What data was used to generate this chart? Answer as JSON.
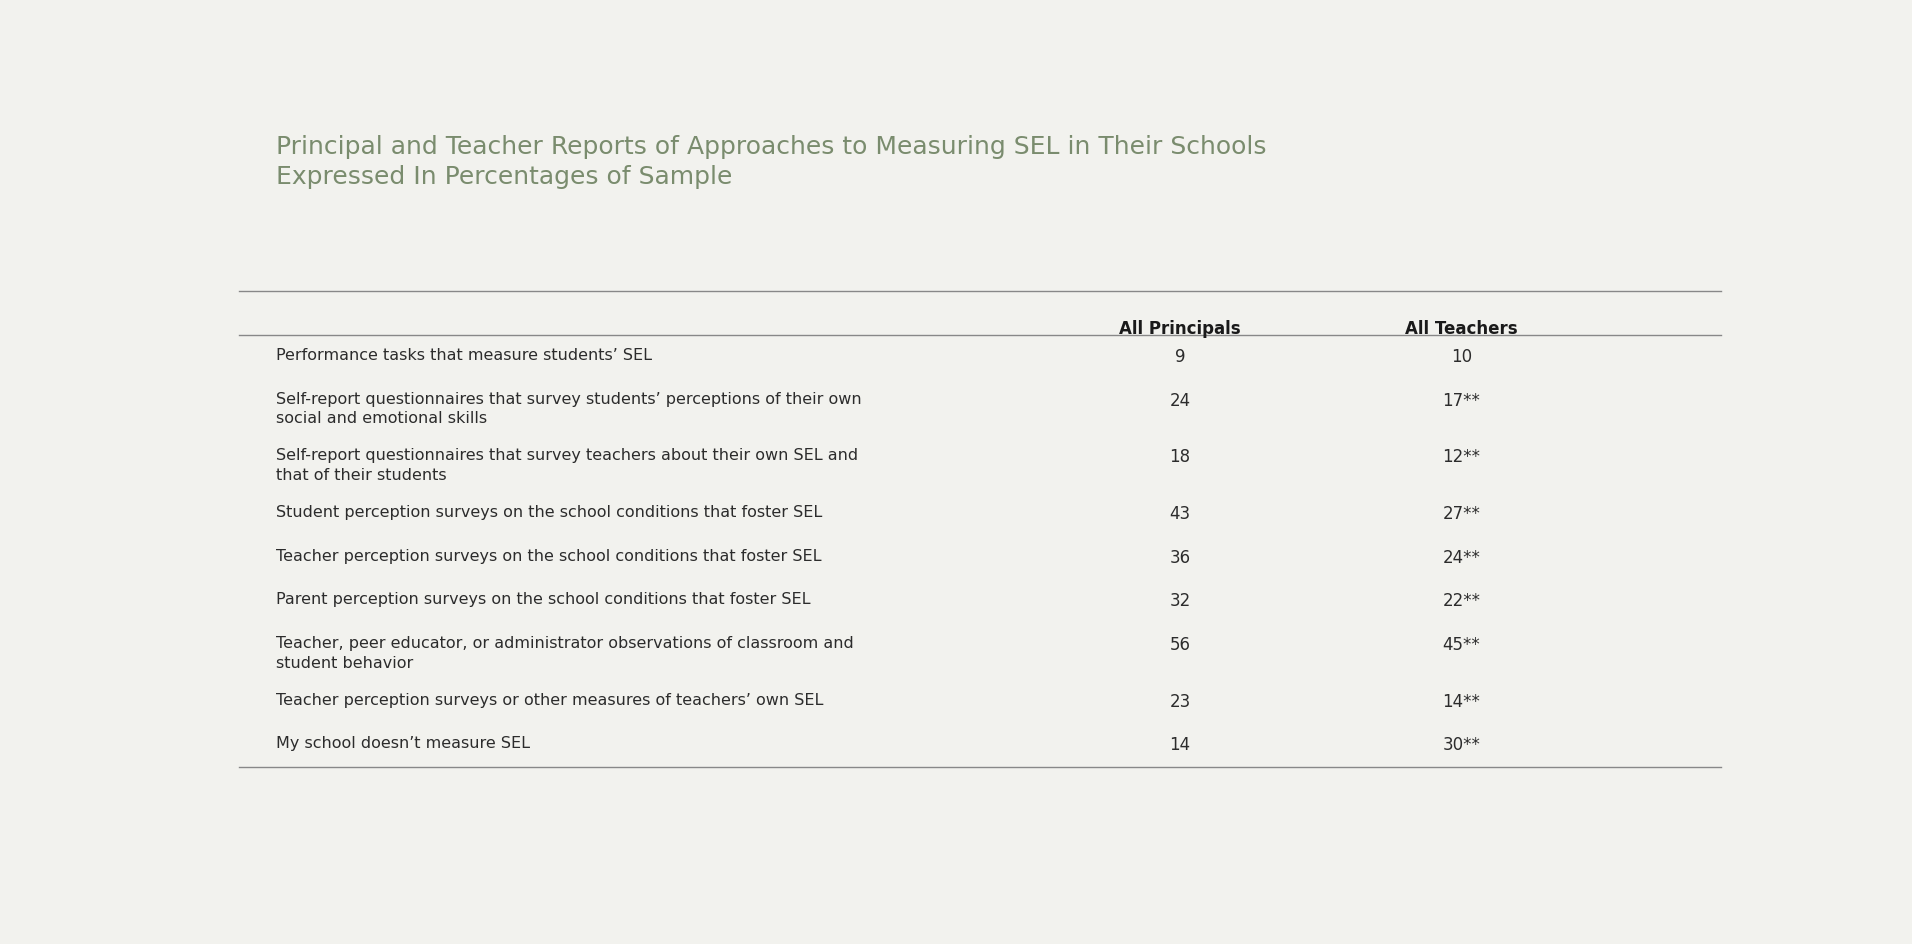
{
  "title_line1": "Principal and Teacher Reports of Approaches to Measuring SEL in Their Schools",
  "title_line2": "Expressed In Percentages of Sample",
  "title_color": "#7a8c6e",
  "col_headers": [
    "All Principals",
    "All Teachers"
  ],
  "rows": [
    {
      "label": "Performance tasks that measure students’ SEL",
      "principals": "9",
      "teachers": "10"
    },
    {
      "label": "Self-report questionnaires that survey students’ perceptions of their own\nsocial and emotional skills",
      "principals": "24",
      "teachers": "17**"
    },
    {
      "label": "Self-report questionnaires that survey teachers about their own SEL and\nthat of their students",
      "principals": "18",
      "teachers": "12**"
    },
    {
      "label": "Student perception surveys on the school conditions that foster SEL",
      "principals": "43",
      "teachers": "27**"
    },
    {
      "label": "Teacher perception surveys on the school conditions that foster SEL",
      "principals": "36",
      "teachers": "24**"
    },
    {
      "label": "Parent perception surveys on the school conditions that foster SEL",
      "principals": "32",
      "teachers": "22**"
    },
    {
      "label": "Teacher, peer educator, or administrator observations of classroom and\nstudent behavior",
      "principals": "56",
      "teachers": "45**"
    },
    {
      "label": "Teacher perception surveys or other measures of teachers’ own SEL",
      "principals": "23",
      "teachers": "14**"
    },
    {
      "label": "My school doesn’t measure SEL",
      "principals": "14",
      "teachers": "30**"
    }
  ],
  "bg_color": "#f2f2ee",
  "text_color": "#2c2c2c",
  "header_color": "#1a1a1a",
  "line_color": "#888888",
  "label_fontsize": 11.5,
  "header_fontsize": 12,
  "title_fontsize": 18,
  "value_fontsize": 12
}
